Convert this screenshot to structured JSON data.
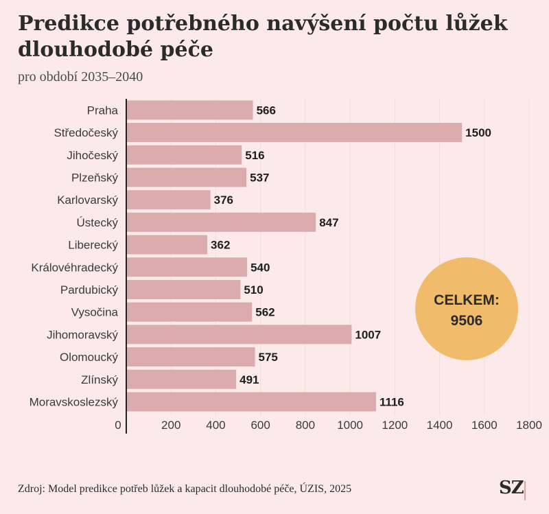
{
  "chart_data": {
    "type": "bar",
    "orientation": "horizontal",
    "title": "Predikce potřebného navýšení počtu lůžek dlouhodobé péče",
    "subtitle": "pro období 2035–2040",
    "categories": [
      "Praha",
      "Středočeský",
      "Jihočeský",
      "Plzeňský",
      "Karlovarský",
      "Ústecký",
      "Liberecký",
      "Královéhradecký",
      "Pardubický",
      "Vysočina",
      "Jihomoravský",
      "Olomoucký",
      "Zlínský",
      "Moravskoslezský"
    ],
    "values": [
      566,
      1500,
      516,
      537,
      376,
      847,
      362,
      540,
      510,
      562,
      1007,
      575,
      491,
      1116
    ],
    "xlim": [
      0,
      1800
    ],
    "xticks": [
      0,
      200,
      400,
      600,
      800,
      1000,
      1200,
      1400,
      1600,
      1800
    ],
    "grid": "vertical",
    "bar_color": "#dbabad",
    "annotation": {
      "line1": "CELKEM:",
      "line2": "9506",
      "color": "#f0bb6b"
    }
  },
  "source": "Zdroj: Model predikce potřeb lůžek a kapacit dlouhodobé péče, ÚZIS, 2025",
  "logo": "SZ"
}
